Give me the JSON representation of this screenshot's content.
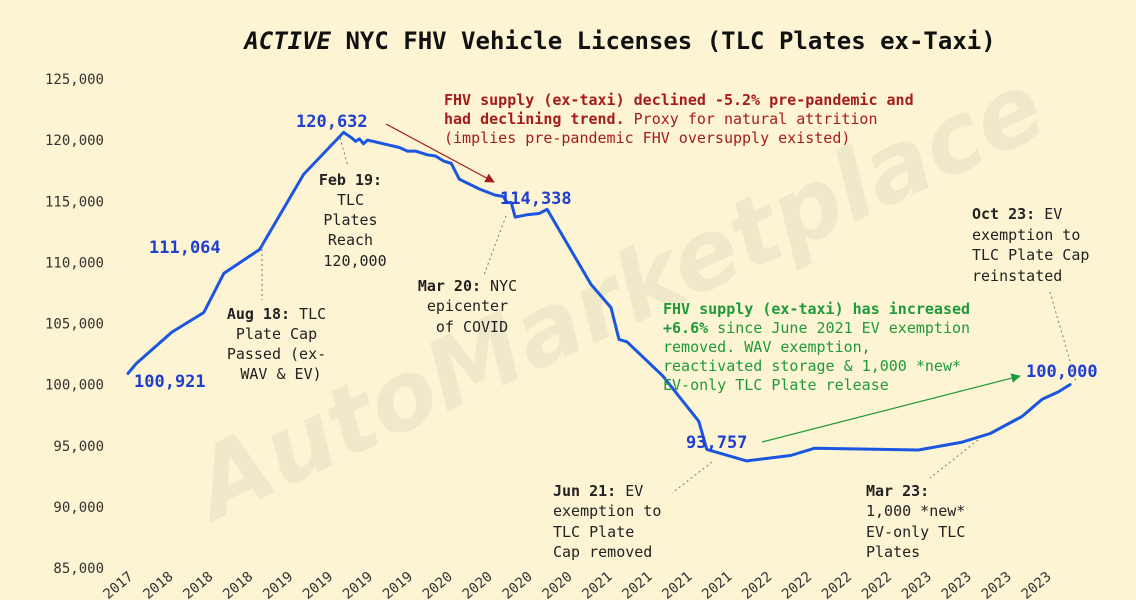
{
  "chart_data": {
    "type": "line",
    "title": {
      "italic": "ACTIVE",
      "rest": " NYC FHV Vehicle Licenses (TLC Plates ex-Taxi)"
    },
    "watermark": "AutoMarketplace",
    "ylim": [
      85000,
      125000
    ],
    "y_ticks": [
      {
        "v": 85000,
        "t": "85,000"
      },
      {
        "v": 90000,
        "t": "90,000"
      },
      {
        "v": 95000,
        "t": "95,000"
      },
      {
        "v": 100000,
        "t": "100,000"
      },
      {
        "v": 105000,
        "t": "105,000"
      },
      {
        "v": 110000,
        "t": "110,000"
      },
      {
        "v": 115000,
        "t": "115,000"
      },
      {
        "v": 120000,
        "t": "120,000"
      },
      {
        "v": 125000,
        "t": "125,000"
      }
    ],
    "xlim": [
      0,
      24
    ],
    "x_ticks": [
      "2017",
      "2018",
      "2018",
      "2018",
      "2019",
      "2019",
      "2019",
      "2019",
      "2020",
      "2020",
      "2020",
      "2020",
      "2021",
      "2021",
      "2021",
      "2021",
      "2022",
      "2022",
      "2022",
      "2022",
      "2023",
      "2023",
      "2023",
      "2023"
    ],
    "line_color": "#1a56e0",
    "series": [
      {
        "points": [
          [
            0.0,
            100921
          ],
          [
            0.2,
            101700
          ],
          [
            1.1,
            104300
          ],
          [
            1.9,
            105900
          ],
          [
            2.4,
            109100
          ],
          [
            3.3,
            111064
          ],
          [
            4.4,
            117200
          ],
          [
            5.4,
            120632
          ],
          [
            5.6,
            120200
          ],
          [
            5.7,
            119900
          ],
          [
            5.8,
            120100
          ],
          [
            5.9,
            119700
          ],
          [
            6.0,
            120000
          ],
          [
            6.4,
            119700
          ],
          [
            6.8,
            119400
          ],
          [
            7.0,
            119100
          ],
          [
            7.2,
            119100
          ],
          [
            7.5,
            118800
          ],
          [
            7.7,
            118700
          ],
          [
            7.9,
            118300
          ],
          [
            8.1,
            118100
          ],
          [
            8.3,
            116800
          ],
          [
            8.8,
            116000
          ],
          [
            9.2,
            115500
          ],
          [
            9.4,
            115400
          ],
          [
            9.5,
            114900
          ],
          [
            9.6,
            114900
          ],
          [
            9.7,
            113700
          ],
          [
            10.0,
            113900
          ],
          [
            10.3,
            114000
          ],
          [
            10.5,
            114338
          ],
          [
            11.6,
            108200
          ],
          [
            12.1,
            106300
          ],
          [
            12.3,
            103700
          ],
          [
            12.5,
            103500
          ],
          [
            13.4,
            100700
          ],
          [
            14.3,
            97000
          ],
          [
            14.5,
            94700
          ],
          [
            15.5,
            93757
          ],
          [
            16.6,
            94200
          ],
          [
            17.1,
            94700
          ],
          [
            17.2,
            94800
          ],
          [
            19.8,
            94650
          ],
          [
            20.9,
            95300
          ],
          [
            21.6,
            96000
          ],
          [
            22.4,
            97400
          ],
          [
            22.9,
            98800
          ],
          [
            23.3,
            99400
          ],
          [
            23.6,
            100000
          ]
        ]
      }
    ],
    "value_labels": [
      "100,921",
      "111,064",
      "120,632",
      "114,338",
      "93,757",
      "100,000"
    ],
    "annotations": {
      "aug18": {
        "bold": "Aug 18:",
        "rest": " TLC",
        "l2": "Plate Cap",
        "l3": "Passed (ex-",
        "l4": "WAV & EV)"
      },
      "feb19": {
        "bold": "Feb 19:",
        "l2": "TLC",
        "l3": "Plates",
        "l4": "Reach",
        "l5": "120,000"
      },
      "mar20": {
        "bold": "Mar 20:",
        "rest": " NYC",
        "l2": "epicenter",
        "l3": "of COVID"
      },
      "jun21": {
        "bold": "Jun 21:",
        "rest": " EV",
        "l2": "exemption to",
        "l3": "TLC Plate",
        "l4": "Cap removed"
      },
      "mar23": {
        "bold": "Mar 23:",
        "l2": "1,000 *new*",
        "l3": "EV-only TLC",
        "l4": "Plates"
      },
      "oct23": {
        "bold": "Oct 23:",
        "rest": " EV",
        "l2": "exemption to",
        "l3": "TLC Plate Cap",
        "l4": "reinstated"
      },
      "red": {
        "b1": "FHV supply (ex-taxi) declined -5.2% pre-pandemic and",
        "b2": "had declining trend.",
        "r2": " Proxy for natural attrition",
        "l3": "(implies pre-pandemic FHV oversupply existed)",
        "color": "#a61c1c"
      },
      "green": {
        "b1": "FHV supply (ex-taxi) has increased",
        "b2": "+6.6%",
        "r2": " since June 2021 EV exemption",
        "l3": "removed. WAV exemption,",
        "l4": "reactivated storage & 1,000 *new*",
        "l5": "EV-only TLC Plate release",
        "color": "#1e9a3a"
      }
    }
  }
}
